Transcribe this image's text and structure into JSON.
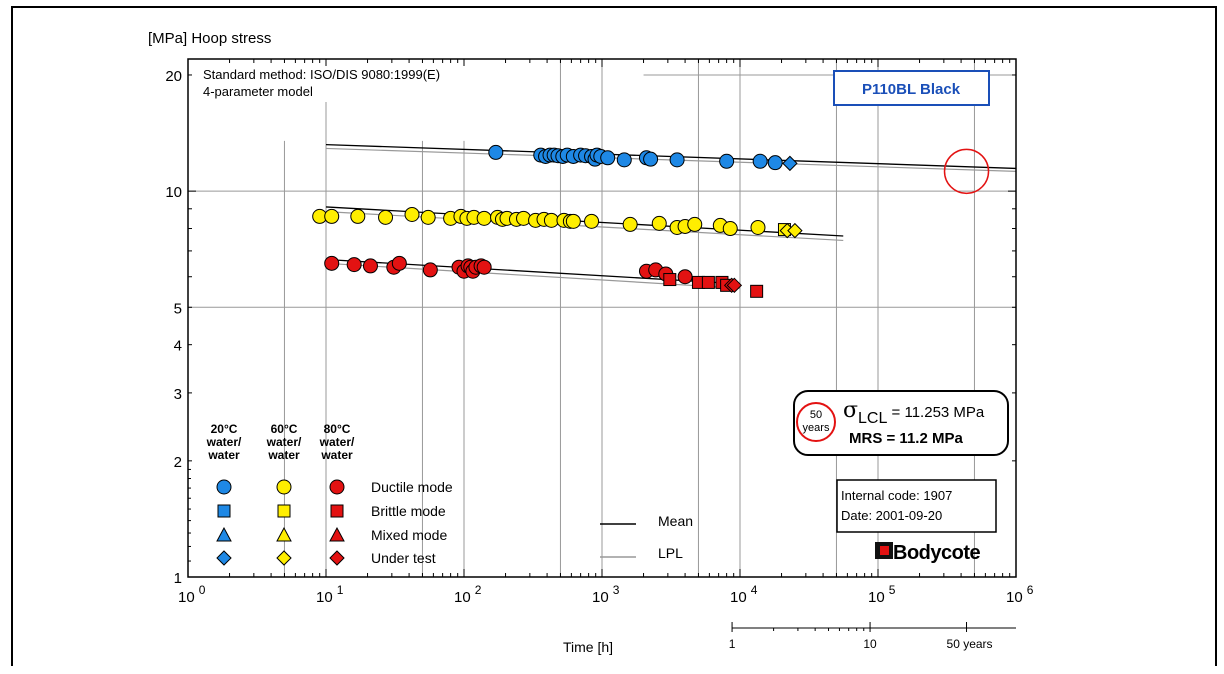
{
  "chart_data": {
    "type": "scatter",
    "y_axis_title": "[MPa] Hoop stress",
    "x_axis_title": "Time [h]",
    "x_scale": "log",
    "y_scale": "log",
    "xlim": [
      1,
      1000000
    ],
    "ylim": [
      1,
      22
    ],
    "x_tick_labels": [
      {
        "base": "10",
        "exp": "0",
        "value": 1
      },
      {
        "base": "10",
        "exp": "1",
        "value": 10
      },
      {
        "base": "10",
        "exp": "2",
        "value": 100
      },
      {
        "base": "10",
        "exp": "3",
        "value": 1000
      },
      {
        "base": "10",
        "exp": "4",
        "value": 10000
      },
      {
        "base": "10",
        "exp": "5",
        "value": 100000
      },
      {
        "base": "10",
        "exp": "6",
        "value": 1000000
      }
    ],
    "y_tick_labels": [
      {
        "label": "20",
        "value": 20
      },
      {
        "label": "10",
        "value": 10
      },
      {
        "label": "5",
        "value": 5
      },
      {
        "label": "4",
        "value": 4
      },
      {
        "label": "3",
        "value": 3
      },
      {
        "label": "2",
        "value": 2
      },
      {
        "label": "1",
        "value": 1
      }
    ],
    "years_axis": [
      {
        "label": "1",
        "hours": 8760
      },
      {
        "label": "10",
        "hours": 87600
      },
      {
        "label": "50 years",
        "hours": 438000
      }
    ],
    "method_lines": [
      "Standard method: ISO/DIS 9080:1999(E)",
      "4-parameter model"
    ],
    "material_label": "P110BL Black",
    "temperature_columns": [
      {
        "temp": "20°C",
        "line2": "water/",
        "line3": "water",
        "color": "#1e88e5"
      },
      {
        "temp": "60°C",
        "line2": "water/",
        "line3": "water",
        "color": "#ffee00"
      },
      {
        "temp": "80°C",
        "line2": "water/",
        "line3": "water",
        "color": "#e31212"
      }
    ],
    "marker_legend": [
      {
        "label": "Ductile mode",
        "shape": "circle"
      },
      {
        "label": "Brittle mode",
        "shape": "square"
      },
      {
        "label": "Mixed mode",
        "shape": "triangle"
      },
      {
        "label": "Under test",
        "shape": "diamond"
      }
    ],
    "line_legend": [
      {
        "label": "Mean",
        "color": "#000000"
      },
      {
        "label": "LPL",
        "color": "#999999"
      }
    ],
    "result_box": {
      "badge_top": "50",
      "badge_bottom": "years",
      "sigma_symbol": "σ",
      "sigma_sub": "LCL",
      "sigma_value": " = 11.253 MPa",
      "mrs": "MRS = 11.2 MPa"
    },
    "info_box": [
      "Internal code: 1907",
      "Date: 2001-09-20"
    ],
    "logo": "Bodycote",
    "extrapolation_point": {
      "x": 438000,
      "y": 11.253
    },
    "series": [
      {
        "temp": "20°C",
        "mode": "ductile",
        "color": "#1e88e5",
        "shape": "circle",
        "x": [
          170,
          360,
          390,
          420,
          450,
          480,
          520,
          560,
          620,
          700,
          760,
          840,
          890,
          920,
          980,
          1100,
          1450,
          2100,
          2250,
          3500,
          8000,
          14000,
          18000
        ],
        "y": [
          12.6,
          12.4,
          12.3,
          12.4,
          12.4,
          12.35,
          12.3,
          12.4,
          12.3,
          12.4,
          12.35,
          12.3,
          12.1,
          12.4,
          12.3,
          12.2,
          12.05,
          12.2,
          12.1,
          12.05,
          11.95,
          11.95,
          11.85
        ]
      },
      {
        "temp": "20°C",
        "mode": "under test",
        "color": "#1e88e5",
        "shape": "diamond",
        "x": [
          23000
        ],
        "y": [
          11.8
        ]
      },
      {
        "temp": "60°C",
        "mode": "ductile",
        "color": "#ffee00",
        "shape": "circle",
        "x": [
          9,
          11,
          17,
          27,
          42,
          55,
          80,
          95,
          105,
          118,
          140,
          175,
          190,
          205,
          240,
          270,
          330,
          380,
          430,
          530,
          590,
          620,
          840,
          1600,
          2600,
          3500,
          4000,
          4700,
          7200,
          8500,
          13500
        ],
        "y": [
          8.6,
          8.6,
          8.6,
          8.55,
          8.7,
          8.55,
          8.5,
          8.6,
          8.5,
          8.55,
          8.5,
          8.55,
          8.45,
          8.5,
          8.45,
          8.5,
          8.4,
          8.45,
          8.4,
          8.4,
          8.35,
          8.35,
          8.35,
          8.2,
          8.25,
          8.05,
          8.1,
          8.2,
          8.15,
          8.0,
          8.05
        ]
      },
      {
        "temp": "60°C",
        "mode": "brittle",
        "color": "#ffee00",
        "shape": "square",
        "x": [
          21000
        ],
        "y": [
          7.95
        ]
      },
      {
        "temp": "60°C",
        "mode": "under test",
        "color": "#ffee00",
        "shape": "diamond",
        "x": [
          22000,
          25000
        ],
        "y": [
          7.9,
          7.9
        ]
      },
      {
        "temp": "80°C",
        "mode": "ductile",
        "color": "#e31212",
        "shape": "circle",
        "x": [
          11,
          16,
          21,
          31,
          34,
          57,
          92,
          100,
          107,
          112,
          116,
          122,
          133,
          140,
          2100,
          2450,
          2900,
          4000
        ],
        "y": [
          6.5,
          6.45,
          6.4,
          6.35,
          6.5,
          6.25,
          6.35,
          6.2,
          6.4,
          6.35,
          6.2,
          6.35,
          6.4,
          6.35,
          6.2,
          6.25,
          6.1,
          6.0
        ]
      },
      {
        "temp": "80°C",
        "mode": "brittle",
        "color": "#e31212",
        "shape": "square",
        "x": [
          3100,
          5000,
          5900,
          7400,
          8000,
          13200
        ],
        "y": [
          5.9,
          5.8,
          5.8,
          5.8,
          5.7,
          5.5
        ]
      },
      {
        "temp": "80°C",
        "mode": "under test",
        "color": "#e31212",
        "shape": "diamond",
        "x": [
          8700,
          9100
        ],
        "y": [
          5.7,
          5.7
        ]
      }
    ],
    "regression_lines": [
      {
        "temp": "20°C",
        "kind": "mean",
        "x": [
          10,
          1000000
        ],
        "y": [
          13.2,
          11.45
        ]
      },
      {
        "temp": "20°C",
        "kind": "lpl",
        "x": [
          10,
          1000000
        ],
        "y": [
          12.9,
          11.25
        ]
      },
      {
        "temp": "60°C",
        "kind": "mean",
        "x": [
          10,
          56000
        ],
        "y": [
          9.1,
          7.65
        ]
      },
      {
        "temp": "60°C",
        "kind": "lpl",
        "x": [
          10,
          56000
        ],
        "y": [
          8.85,
          7.45
        ]
      },
      {
        "temp": "80°C",
        "kind": "mean",
        "x": [
          10,
          10000
        ],
        "y": [
          6.65,
          5.75
        ]
      },
      {
        "temp": "80°C",
        "kind": "lpl",
        "x": [
          10,
          10000
        ],
        "y": [
          6.5,
          5.6
        ]
      }
    ]
  }
}
